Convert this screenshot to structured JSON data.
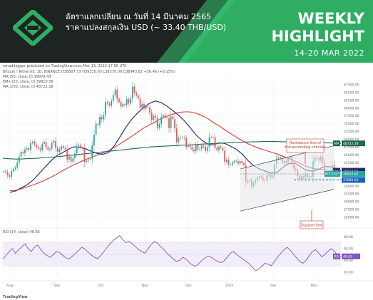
{
  "header": {
    "thai_line1": "อัตราแลกเปลี่ยน ณ วันที่ 14 มีนาคม 2565",
    "thai_line2": "ราคาแปลงสกุลเงิน USD (~ 33.40 THB/USD)",
    "weekly": "WEEKLY",
    "highlight": "HIGHLIGHT",
    "date_range": "14-20 MAR 2022",
    "colors": {
      "banner": "#1e2421",
      "accent": "#27ae60"
    }
  },
  "tv": {
    "published": "renaddagger published on TradingView.com, Mar 13, 2022 17:56 UTC",
    "symbol_line": "Bitcoin / TetherUS, 1D, BINANCE  O38807.73  H39310.00  L38370.00  C38943.82  +56.46 (+0.15%)",
    "ma50_label": "MA (50, close, 0)  39978.43",
    "ema20_label": "EMA (20, close, 0)  39810.58",
    "ma200_label": "MA (200, close, 0)  48722.38",
    "rsi_label": "RSI (14, close)  46.65",
    "footer": "TradingView"
  },
  "annotations": {
    "resistance": "Resistance line of the ascending channel",
    "support": "Support line"
  },
  "chart_data": {
    "type": "candlestick",
    "title": "Bitcoin / TetherUS, 1D, BINANCE",
    "ohlc_last": {
      "open": 38807.73,
      "high": 39310.0,
      "low": 38370.0,
      "close": 38943.82,
      "change": 56.46,
      "change_pct": 0.15
    },
    "x_ticks": [
      "Aug",
      "Sep",
      "Oct",
      "Nov",
      "Dec",
      "2022",
      "Feb",
      "Mar"
    ],
    "y_ticks": [
      25000,
      27500,
      30000,
      32500,
      35000,
      37500,
      40000,
      42500,
      45000,
      47500,
      50000,
      52500,
      55000,
      57500,
      60000,
      62500,
      65000,
      67500
    ],
    "y_tick_labels": [
      "25000.00",
      "27500.00",
      "30000.00",
      "32500.00",
      "35000.00",
      "37500.00",
      "40000.00",
      "42500.00",
      "45000.00",
      "47500.00",
      "50000.00",
      "52500.00",
      "55000.00",
      "57500.00",
      "60000.00",
      "62500.00",
      "65000.00",
      "67500.00"
    ],
    "ylim": [
      22500,
      70000
    ],
    "price_tags": [
      {
        "label": "MA",
        "value": 48722.38,
        "text": "48722.38",
        "color": "#1e6b4a"
      },
      {
        "label": "MA",
        "value": 39978.43,
        "text": "39978.43",
        "color": "#c0392b"
      },
      {
        "label": "EMA",
        "value": 39810.58,
        "text": "39810.58",
        "color": "#1a237e"
      },
      {
        "label": "BTCUSDT",
        "value": 38943.82,
        "text": "38943.82",
        "color": "#26a69a"
      },
      {
        "label": "",
        "value": 37000.0,
        "text": "37000.00",
        "color": "#1565c0"
      }
    ],
    "support_level": 37000,
    "closes": [
      39800,
      39500,
      38500,
      38000,
      39800,
      40500,
      41000,
      42500,
      44500,
      46000,
      45500,
      46800,
      47200,
      46500,
      48800,
      49300,
      48300,
      47500,
      47000,
      46500,
      48500,
      49200,
      47500,
      46700,
      47000,
      48800,
      49500,
      47200,
      46000,
      46800,
      47800,
      47200,
      46800,
      43500,
      44500,
      42800,
      44000,
      45500,
      47700,
      48200,
      47200,
      47000,
      42800,
      43200,
      43600,
      43800,
      48000,
      51500,
      55000,
      54600,
      57200,
      56400,
      57800,
      62000,
      61500,
      60800,
      62300,
      64200,
      65900,
      63000,
      62000,
      60500,
      61300,
      61000,
      62900,
      61500,
      63200,
      66900,
      64900,
      64100,
      63000,
      60200,
      61300,
      59800,
      60600,
      60300,
      58500,
      56200,
      57500,
      56900,
      53700,
      54900,
      57200,
      57800,
      57000,
      56900,
      53600,
      57400,
      56500,
      53500,
      49100,
      50500,
      50600,
      50600,
      50400,
      47600,
      48300,
      47600,
      46700,
      46200,
      48400,
      46700,
      46900,
      48000,
      47700,
      46300,
      47500,
      50700,
      50800,
      50700,
      47300,
      46500,
      47700,
      47300,
      46400,
      42800,
      43500,
      41800,
      41900,
      42600,
      43100,
      43100,
      42200,
      43000,
      42400,
      41700,
      36300,
      36700,
      37000,
      35000,
      36100,
      36900,
      37800,
      38200,
      37900,
      36900,
      36800,
      38400,
      38700,
      37900,
      38400,
      42000,
      43800,
      44200,
      43900,
      42400,
      43000,
      42500,
      43800,
      44500,
      42000,
      40600,
      40100,
      38300,
      37300,
      38200,
      37700,
      39000,
      37800,
      38200,
      37900,
      43000,
      44300,
      43900,
      43200,
      44400,
      42500,
      39200,
      38900,
      38700,
      39400,
      41900,
      39500,
      38800,
      39000,
      38943.82
    ],
    "moving_averages": [
      {
        "name": "MA (50, close, 0)",
        "color": "#e53935",
        "values": [
          33500,
          33700,
          34200,
          34800,
          35400,
          36100,
          36900,
          37800,
          38800,
          39900,
          40900,
          41800,
          42700,
          43500,
          44300,
          44900,
          45600,
          46400,
          47500,
          48600,
          49800,
          51000,
          52300,
          53600,
          54600,
          55600,
          56600,
          57400,
          58100,
          58600,
          58800,
          58800,
          58400,
          57700,
          56700,
          55500,
          54300,
          53100,
          51900,
          50700,
          49600,
          48600,
          47800,
          47100,
          46500,
          45900,
          45300,
          44600,
          43900,
          43100,
          42200,
          41400,
          40800,
          40500,
          40300,
          40100,
          40000,
          39980
        ]
      },
      {
        "name": "EMA (20, close, 0)",
        "color": "#1a237e",
        "values": [
          33000,
          33500,
          34500,
          35500,
          37000,
          39000,
          41000,
          43000,
          44700,
          45700,
          46800,
          47600,
          47500,
          47000,
          46200,
          45500,
          45200,
          45800,
          48000,
          51000,
          54000,
          56500,
          58500,
          60200,
          61500,
          62300,
          61800,
          60700,
          59300,
          57800,
          56000,
          53800,
          51500,
          49800,
          48500,
          48200,
          48900,
          48700,
          47800,
          46800,
          45300,
          43200,
          41500,
          40500,
          39800,
          39200,
          39400,
          41000,
          42200,
          42400,
          41300,
          40100,
          39800,
          40200,
          41200,
          41300,
          40600,
          39810
        ]
      },
      {
        "name": "MA (200, close, 0)",
        "color": "#1e6b4a",
        "values": [
          44000,
          43800,
          43700,
          43700,
          43800,
          43900,
          44000,
          44200,
          44300,
          44400,
          44600,
          44800,
          45000,
          45200,
          45400,
          45600,
          45800,
          46000,
          46200,
          46400,
          46600,
          46800,
          47000,
          47200,
          47400,
          47600,
          47700,
          47800,
          47900,
          48000,
          48100,
          48200,
          48300,
          48400,
          48500,
          48600,
          48700,
          48800,
          48900,
          49000,
          49100,
          49150,
          49200,
          49250,
          49300,
          49300,
          49300,
          49250,
          49200,
          49150,
          49100,
          49050,
          49000,
          48950,
          48900,
          48850,
          48800,
          48722
        ]
      }
    ],
    "rsi": {
      "name": "RSI (14, close)",
      "current": 46.65,
      "current_text": "46.65",
      "levels": [
        70,
        50,
        30
      ],
      "y_ticks": [
        20,
        40,
        60,
        80
      ],
      "y_tick_labels": [
        "20.00",
        "40.00",
        "60.00",
        "80.00"
      ],
      "ylim": [
        10,
        90
      ],
      "values": [
        42,
        48,
        55,
        60,
        52,
        58,
        63,
        68,
        60,
        55,
        62,
        66,
        58,
        52,
        48,
        45,
        50,
        55,
        53,
        48,
        44,
        42,
        47,
        52,
        57,
        62,
        59,
        54,
        49,
        45,
        43,
        48,
        55,
        62,
        68,
        74,
        78,
        82,
        75,
        70,
        72,
        68,
        63,
        58,
        55,
        52,
        60,
        67,
        72,
        69,
        63,
        58,
        52,
        47,
        42,
        38,
        40,
        45,
        42,
        36,
        32,
        30,
        34,
        40,
        44,
        47,
        45,
        41,
        38,
        36,
        39,
        45,
        52,
        55,
        50,
        46,
        42,
        38,
        34,
        28,
        22,
        25,
        30,
        35,
        33,
        31,
        38,
        46,
        52,
        58,
        62,
        57,
        50,
        44,
        38,
        35,
        40,
        48,
        55,
        58,
        52,
        46,
        50,
        56,
        60,
        55,
        48,
        46.65
      ]
    }
  }
}
